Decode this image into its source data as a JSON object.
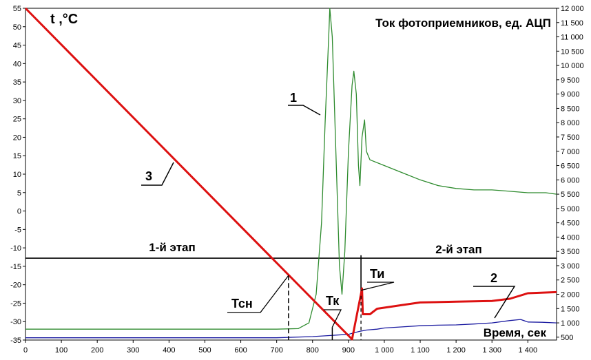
{
  "chart_data": {
    "type": "line",
    "left_axis_title": "t ,°C",
    "right_axis_title": "Ток фотоприемников, ед. АЦП",
    "x_axis_title": "Время, сек",
    "xlim": [
      0,
      1480
    ],
    "ylim_left": [
      -35,
      55
    ],
    "ylim_right": [
      400,
      12000
    ],
    "x_ticks": [
      "0",
      "100",
      "200",
      "300",
      "400",
      "500",
      "600",
      "700",
      "800",
      "900",
      "1 000",
      "1 100",
      "1 200",
      "1 300",
      "1 400"
    ],
    "x_tick_values": [
      0,
      100,
      200,
      300,
      400,
      500,
      600,
      700,
      800,
      900,
      1000,
      1100,
      1200,
      1300,
      1400
    ],
    "y_left_ticks": [
      "55",
      "50",
      "45",
      "40",
      "35",
      "30",
      "25",
      "20",
      "15",
      "10",
      "5",
      "0",
      "-5",
      "-10",
      "-15",
      "-20",
      "-25",
      "-30",
      "-35"
    ],
    "y_left_values": [
      55,
      50,
      45,
      40,
      35,
      30,
      25,
      20,
      15,
      10,
      5,
      0,
      -5,
      -10,
      -15,
      -20,
      -25,
      -30,
      -35
    ],
    "y_right_ticks": [
      "12 000",
      "11 500",
      "11 000",
      "10 500",
      "10 000",
      "9 500",
      "9 000",
      "8 500",
      "8 000",
      "7 500",
      "7 000",
      "6 500",
      "6 000",
      "5 500",
      "5 000",
      "4 500",
      "4 000",
      "3 500",
      "3 000",
      "2 500",
      "2 000",
      "1 500",
      "1 000",
      "500"
    ],
    "y_right_values": [
      12000,
      11500,
      11000,
      10500,
      10000,
      9500,
      9000,
      8500,
      8000,
      7500,
      7000,
      6500,
      6000,
      5500,
      5000,
      4500,
      4000,
      3500,
      3000,
      2500,
      2000,
      1500,
      1000,
      500
    ],
    "stage_line_y": -12.8,
    "stage_divider_x": 935,
    "stage_labels": [
      "1-й этап",
      "2-й этап"
    ],
    "series": [
      {
        "name": "1",
        "axis": "right",
        "color": "#2e8b2e",
        "points": [
          [
            0,
            780
          ],
          [
            700,
            780
          ],
          [
            760,
            800
          ],
          [
            790,
            1000
          ],
          [
            810,
            2000
          ],
          [
            825,
            4500
          ],
          [
            835,
            8000
          ],
          [
            845,
            11000
          ],
          [
            848,
            12000
          ],
          [
            855,
            11000
          ],
          [
            865,
            7000
          ],
          [
            875,
            3000
          ],
          [
            882,
            2000
          ],
          [
            890,
            3500
          ],
          [
            900,
            7000
          ],
          [
            910,
            9300
          ],
          [
            915,
            9800
          ],
          [
            922,
            9000
          ],
          [
            928,
            6500
          ],
          [
            932,
            5800
          ],
          [
            938,
            7500
          ],
          [
            945,
            8100
          ],
          [
            950,
            7000
          ],
          [
            960,
            6700
          ],
          [
            1000,
            6500
          ],
          [
            1060,
            6200
          ],
          [
            1100,
            6000
          ],
          [
            1150,
            5800
          ],
          [
            1200,
            5700
          ],
          [
            1250,
            5650
          ],
          [
            1300,
            5650
          ],
          [
            1350,
            5600
          ],
          [
            1400,
            5550
          ],
          [
            1450,
            5550
          ],
          [
            1480,
            5500
          ]
        ]
      },
      {
        "name": "2",
        "axis": "right",
        "color": "#1a1aa0",
        "points": [
          [
            0,
            480
          ],
          [
            700,
            480
          ],
          [
            800,
            520
          ],
          [
            850,
            560
          ],
          [
            900,
            600
          ],
          [
            930,
            700
          ],
          [
            950,
            750
          ],
          [
            980,
            780
          ],
          [
            1000,
            820
          ],
          [
            1050,
            860
          ],
          [
            1100,
            900
          ],
          [
            1150,
            920
          ],
          [
            1200,
            930
          ],
          [
            1250,
            960
          ],
          [
            1300,
            1000
          ],
          [
            1350,
            1080
          ],
          [
            1380,
            1120
          ],
          [
            1400,
            1030
          ],
          [
            1440,
            1020
          ],
          [
            1480,
            1000
          ]
        ]
      },
      {
        "name": "3",
        "axis": "left",
        "color": "#dd1111",
        "points": [
          [
            0,
            55
          ],
          [
            910,
            -34.8
          ],
          [
            932,
            -24
          ],
          [
            938,
            -21
          ],
          [
            940,
            -28
          ],
          [
            960,
            -28
          ],
          [
            980,
            -26.5
          ],
          [
            1050,
            -25.5
          ],
          [
            1100,
            -24.8
          ],
          [
            1200,
            -24.6
          ],
          [
            1300,
            -24.4
          ],
          [
            1350,
            -23.8
          ],
          [
            1400,
            -22.3
          ],
          [
            1480,
            -22
          ]
        ]
      }
    ],
    "annotations": [
      "1",
      "2",
      "3",
      "Тсн",
      "Тк",
      "Ти"
    ],
    "annotation_x": [
      null,
      null,
      null,
      733,
      855,
      935
    ]
  }
}
